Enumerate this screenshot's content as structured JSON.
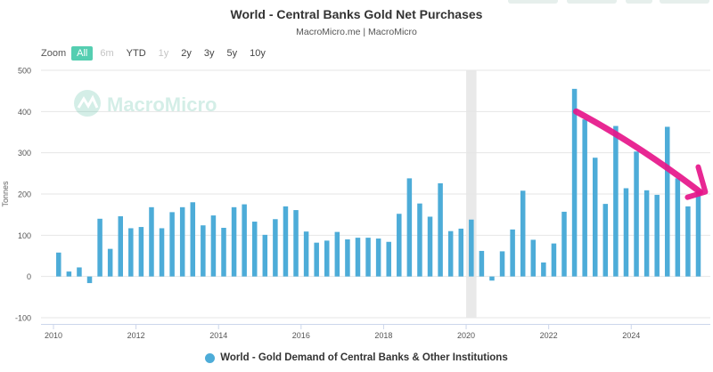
{
  "chart_title": "World - Central Banks Gold Net Purchases",
  "chart_subtitle": "MacroMicro.me | MacroMicro",
  "watermark": "MacroMicro",
  "zoom": {
    "label": "Zoom",
    "buttons": [
      {
        "label": "All",
        "state": "active"
      },
      {
        "label": "6m",
        "state": "disabled"
      },
      {
        "label": "YTD",
        "state": "normal"
      },
      {
        "label": "1y",
        "state": "disabled"
      },
      {
        "label": "2y",
        "state": "normal"
      },
      {
        "label": "3y",
        "state": "normal"
      },
      {
        "label": "5y",
        "state": "normal"
      },
      {
        "label": "10y",
        "state": "normal"
      }
    ]
  },
  "colors": {
    "bar": "#4dacd8",
    "accent": "#55ceb1",
    "annotation": "#e6168a",
    "shade": "#e9e9e9"
  },
  "chart_data": {
    "type": "bar",
    "ylabel": "Tonnes",
    "ylim": [
      -100,
      500
    ],
    "yticks": [
      -100,
      0,
      100,
      200,
      300,
      400,
      500
    ],
    "xlabels": [
      "2010",
      "2012",
      "2014",
      "2016",
      "2018",
      "2020",
      "2022",
      "2024"
    ],
    "xlim": [
      "2010-01",
      "2025-12"
    ],
    "shaded_period": [
      "2020-01",
      "2020-04"
    ],
    "series": [
      {
        "name": "World - Gold Demand of Central Banks & Other Institutions",
        "dates": [
          "2010-Q1",
          "2010-Q2",
          "2010-Q3",
          "2010-Q4",
          "2011-Q1",
          "2011-Q2",
          "2011-Q3",
          "2011-Q4",
          "2012-Q1",
          "2012-Q2",
          "2012-Q3",
          "2012-Q4",
          "2013-Q1",
          "2013-Q2",
          "2013-Q3",
          "2013-Q4",
          "2014-Q1",
          "2014-Q2",
          "2014-Q3",
          "2014-Q4",
          "2015-Q1",
          "2015-Q2",
          "2015-Q3",
          "2015-Q4",
          "2016-Q1",
          "2016-Q2",
          "2016-Q3",
          "2016-Q4",
          "2017-Q1",
          "2017-Q2",
          "2017-Q3",
          "2017-Q4",
          "2018-Q1",
          "2018-Q2",
          "2018-Q3",
          "2018-Q4",
          "2019-Q1",
          "2019-Q2",
          "2019-Q3",
          "2019-Q4",
          "2020-Q1",
          "2020-Q2",
          "2020-Q3",
          "2020-Q4",
          "2021-Q1",
          "2021-Q2",
          "2021-Q3",
          "2021-Q4",
          "2022-Q1",
          "2022-Q2",
          "2022-Q3",
          "2022-Q4",
          "2023-Q1",
          "2023-Q2",
          "2023-Q3",
          "2023-Q4",
          "2024-Q1",
          "2024-Q2",
          "2024-Q3",
          "2024-Q4",
          "2025-Q1",
          "2025-Q2",
          "2025-Q3"
        ],
        "values": [
          58,
          12,
          22,
          -16,
          140,
          67,
          146,
          117,
          120,
          168,
          117,
          156,
          168,
          180,
          124,
          148,
          118,
          168,
          175,
          133,
          101,
          139,
          170,
          161,
          109,
          82,
          87,
          108,
          90,
          94,
          94,
          92,
          84,
          152,
          238,
          177,
          145,
          226,
          110,
          116,
          138,
          62,
          -10,
          61,
          114,
          208,
          89,
          34,
          80,
          157,
          455,
          381,
          288,
          176,
          365,
          214,
          303,
          209,
          198,
          363,
          238,
          170,
          210
        ]
      }
    ],
    "annotation": {
      "type": "trend-arrow",
      "from": [
        "2022-09",
        400
      ],
      "to": [
        "2025-09",
        205
      ]
    }
  }
}
